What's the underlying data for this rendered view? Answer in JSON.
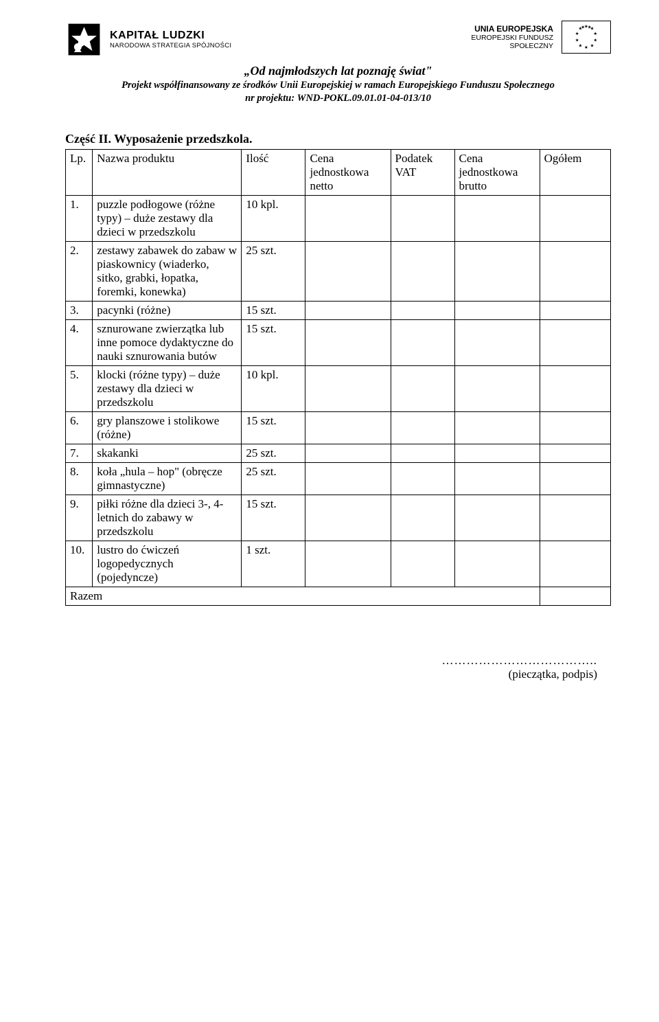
{
  "header": {
    "kl_line1": "KAPITAŁ LUDZKI",
    "kl_line2": "NARODOWA STRATEGIA SPÓJNOŚCI",
    "eu_line1": "UNIA EUROPEJSKA",
    "eu_line2": "EUROPEJSKI FUNDUSZ",
    "eu_line3": "SPOŁECZNY",
    "project_title": "„Od najmłodszych lat poznaję świat\"",
    "project_sub": "Projekt współfinansowany ze środków Unii Europejskiej w ramach Europejskiego Funduszu Społecznego",
    "project_nr": "nr projektu: WND-POKL.09.01.01-04-013/10"
  },
  "section_title": "Część II. Wyposażenie przedszkola.",
  "table": {
    "columns": [
      "Lp.",
      "Nazwa produktu",
      "Ilość",
      "Cena jednostkowa netto",
      "Podatek VAT",
      "Cena jednostkowa brutto",
      "Ogółem"
    ],
    "rows": [
      {
        "lp": "1.",
        "name": "puzzle podłogowe (różne typy) – duże zestawy dla dzieci w przedszkolu",
        "qty": "10 kpl."
      },
      {
        "lp": "2.",
        "name": "zestawy zabawek do zabaw w piaskownicy (wiaderko, sitko, grabki, łopatka, foremki, konewka)",
        "qty": "25 szt."
      },
      {
        "lp": "3.",
        "name": "pacynki (różne)",
        "qty": "15 szt."
      },
      {
        "lp": "4.",
        "name": "sznurowane zwierzątka lub inne pomoce dydaktyczne do nauki sznurowania butów",
        "qty": "15 szt."
      },
      {
        "lp": "5.",
        "name": "klocki (różne typy) – duże zestawy dla dzieci w przedszkolu",
        "qty": "10 kpl."
      },
      {
        "lp": "6.",
        "name": "gry planszowe i stolikowe (różne)",
        "qty": "15 szt."
      },
      {
        "lp": "7.",
        "name": "skakanki",
        "qty": "25 szt."
      },
      {
        "lp": "8.",
        "name": "koła „hula – hop\" (obręcze gimnastyczne)",
        "qty": "25 szt."
      },
      {
        "lp": "9.",
        "name": "piłki różne dla dzieci 3-, 4-letnich do zabawy w przedszkolu",
        "qty": "15 szt."
      },
      {
        "lp": "10.",
        "name": "lustro do ćwiczeń logopedycznych (pojedyncze)",
        "qty": "1 szt."
      }
    ],
    "razem_label": "Razem"
  },
  "footer": {
    "dots": "………………………………..",
    "sig": "(pieczątka, podpis)"
  }
}
